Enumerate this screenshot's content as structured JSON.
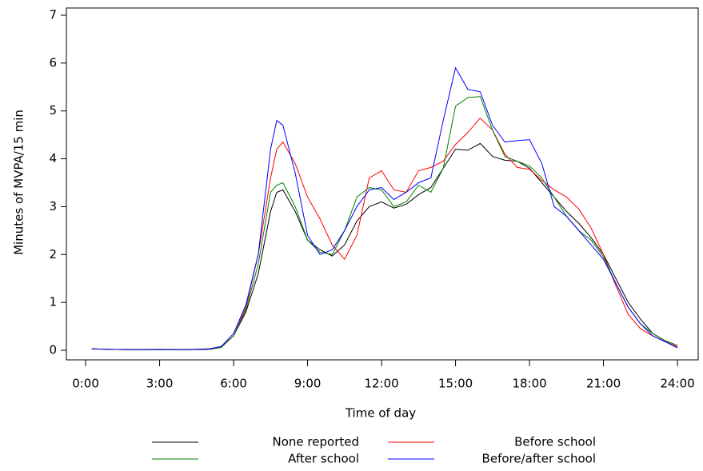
{
  "chart_data": {
    "type": "line",
    "xlabel": "Time of day",
    "ylabel": "Minutes of MVPA/15 min",
    "x": [
      0.25,
      1,
      2,
      3,
      4,
      5,
      5.5,
      6,
      6.5,
      7,
      7.5,
      7.75,
      8,
      8.5,
      9,
      9.5,
      10,
      10.5,
      11,
      11.5,
      12,
      12.5,
      13,
      13.5,
      14,
      14.5,
      15,
      15.5,
      16,
      16.5,
      17,
      17.5,
      18,
      18.5,
      19,
      19.5,
      20,
      20.5,
      21,
      21.5,
      22,
      22.5,
      23,
      23.5,
      24
    ],
    "series": [
      {
        "name": "None reported",
        "color": "#000000",
        "values": [
          0.03,
          0.02,
          0.01,
          0.01,
          0.01,
          0.02,
          0.06,
          0.3,
          0.8,
          1.6,
          2.9,
          3.3,
          3.35,
          2.9,
          2.3,
          2.1,
          1.97,
          2.2,
          2.7,
          3.0,
          3.1,
          2.97,
          3.05,
          3.25,
          3.4,
          3.8,
          4.2,
          4.18,
          4.32,
          4.05,
          3.97,
          3.95,
          3.8,
          3.5,
          3.2,
          2.9,
          2.65,
          2.35,
          2.0,
          1.5,
          1.0,
          0.65,
          0.35,
          0.2,
          0.1
        ]
      },
      {
        "name": "Before school",
        "color": "#ff0000",
        "values": [
          0.03,
          0.02,
          0.01,
          0.01,
          0.01,
          0.03,
          0.07,
          0.3,
          0.9,
          2.0,
          3.6,
          4.2,
          4.35,
          3.9,
          3.2,
          2.75,
          2.2,
          1.9,
          2.4,
          3.6,
          3.75,
          3.35,
          3.3,
          3.75,
          3.82,
          3.95,
          4.3,
          4.55,
          4.85,
          4.6,
          4.1,
          3.82,
          3.78,
          3.55,
          3.35,
          3.2,
          2.95,
          2.55,
          2.0,
          1.35,
          0.75,
          0.45,
          0.3,
          0.18,
          0.07
        ]
      },
      {
        "name": "After school",
        "color": "#008000",
        "values": [
          0.03,
          0.02,
          0.01,
          0.01,
          0.01,
          0.03,
          0.06,
          0.3,
          0.85,
          1.8,
          3.3,
          3.45,
          3.5,
          3.0,
          2.3,
          2.05,
          2.0,
          2.5,
          3.2,
          3.4,
          3.35,
          3.0,
          3.1,
          3.45,
          3.3,
          3.8,
          5.1,
          5.28,
          5.3,
          4.6,
          4.05,
          3.95,
          3.85,
          3.6,
          3.2,
          2.8,
          2.5,
          2.3,
          1.95,
          1.4,
          0.9,
          0.55,
          0.35,
          0.2,
          0.1
        ]
      },
      {
        "name": "Before/after school",
        "color": "#0000ff",
        "values": [
          0.03,
          0.02,
          0.01,
          0.02,
          0.01,
          0.03,
          0.08,
          0.35,
          0.95,
          2.0,
          4.2,
          4.8,
          4.7,
          3.7,
          2.4,
          2.0,
          2.1,
          2.5,
          3.0,
          3.35,
          3.4,
          3.15,
          3.3,
          3.5,
          3.6,
          4.8,
          5.9,
          5.45,
          5.4,
          4.7,
          4.35,
          4.38,
          4.4,
          3.9,
          3.0,
          2.8,
          2.5,
          2.2,
          1.9,
          1.4,
          0.9,
          0.55,
          0.3,
          0.18,
          0.05
        ]
      }
    ],
    "xlim": [
      -0.78,
      24.84
    ],
    "ylim": [
      -0.2,
      7.15
    ],
    "xticks": [
      {
        "value": 0,
        "label": "0:00"
      },
      {
        "value": 3,
        "label": "3:00"
      },
      {
        "value": 6,
        "label": "6:00"
      },
      {
        "value": 9,
        "label": "9:00"
      },
      {
        "value": 12,
        "label": "12:00"
      },
      {
        "value": 15,
        "label": "15:00"
      },
      {
        "value": 18,
        "label": "18:00"
      },
      {
        "value": 21,
        "label": "21:00"
      },
      {
        "value": 24,
        "label": "24:00"
      }
    ],
    "yticks": [
      0,
      1,
      2,
      3,
      4,
      5,
      6,
      7
    ],
    "legend": "bottom"
  }
}
